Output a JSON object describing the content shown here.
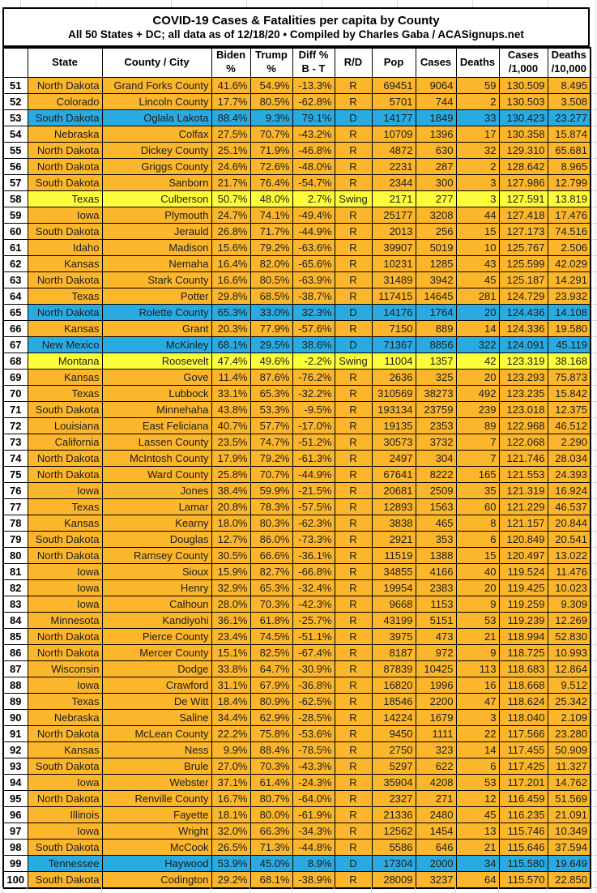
{
  "colors": {
    "republican_row": "#FBB62B",
    "democratic_row": "#29ABE2",
    "swing_row": "#FDFD3B"
  },
  "chart_data": {
    "type": "table",
    "title": "COVID-19 Cases & Fatalities per capita by County",
    "subtitle": "All 50 States + DC; all data as of 12/18/20  • Compiled by Charles Gaba / ACASignups.net",
    "row_color_legend": {
      "R": "orange",
      "D": "blue",
      "Swing": "yellow"
    },
    "columns": [
      "",
      "State",
      "County / City",
      "Biden\n%",
      "Trump\n%",
      "Diff %\nB - T",
      "R/D",
      "Pop",
      "Cases",
      "Deaths",
      "Cases\n/1,000",
      "Deaths\n/10,000"
    ],
    "rows": [
      [
        "51",
        "North Dakota",
        "Grand Forks County",
        "41.6%",
        "54.9%",
        "-13.3%",
        "R",
        "69451",
        "9064",
        "59",
        "130.509",
        "8.495"
      ],
      [
        "52",
        "Colorado",
        "Lincoln County",
        "17.7%",
        "80.5%",
        "-62.8%",
        "R",
        "5701",
        "744",
        "2",
        "130.503",
        "3.508"
      ],
      [
        "53",
        "South Dakota",
        "Oglala Lakota",
        "88.4%",
        "9.3%",
        "79.1%",
        "D",
        "14177",
        "1849",
        "33",
        "130.423",
        "23.277"
      ],
      [
        "54",
        "Nebraska",
        "Colfax",
        "27.5%",
        "70.7%",
        "-43.2%",
        "R",
        "10709",
        "1396",
        "17",
        "130.358",
        "15.874"
      ],
      [
        "55",
        "North Dakota",
        "Dickey County",
        "25.1%",
        "71.9%",
        "-46.8%",
        "R",
        "4872",
        "630",
        "32",
        "129.310",
        "65.681"
      ],
      [
        "56",
        "North Dakota",
        "Griggs County",
        "24.6%",
        "72.6%",
        "-48.0%",
        "R",
        "2231",
        "287",
        "2",
        "128.642",
        "8.965"
      ],
      [
        "57",
        "South Dakota",
        "Sanborn",
        "21.7%",
        "76.4%",
        "-54.7%",
        "R",
        "2344",
        "300",
        "3",
        "127.986",
        "12.799"
      ],
      [
        "58",
        "Texas",
        "Culberson",
        "50.7%",
        "48.0%",
        "2.7%",
        "Swing",
        "2171",
        "277",
        "3",
        "127.591",
        "13.819"
      ],
      [
        "59",
        "Iowa",
        "Plymouth",
        "24.7%",
        "74.1%",
        "-49.4%",
        "R",
        "25177",
        "3208",
        "44",
        "127.418",
        "17.476"
      ],
      [
        "60",
        "South Dakota",
        "Jerauld",
        "26.8%",
        "71.7%",
        "-44.9%",
        "R",
        "2013",
        "256",
        "15",
        "127.173",
        "74.516"
      ],
      [
        "61",
        "Idaho",
        "Madison",
        "15.6%",
        "79.2%",
        "-63.6%",
        "R",
        "39907",
        "5019",
        "10",
        "125.767",
        "2.506"
      ],
      [
        "62",
        "Kansas",
        "Nemaha",
        "16.4%",
        "82.0%",
        "-65.6%",
        "R",
        "10231",
        "1285",
        "43",
        "125.599",
        "42.029"
      ],
      [
        "63",
        "North Dakota",
        "Stark County",
        "16.6%",
        "80.5%",
        "-63.9%",
        "R",
        "31489",
        "3942",
        "45",
        "125.187",
        "14.291"
      ],
      [
        "64",
        "Texas",
        "Potter",
        "29.8%",
        "68.5%",
        "-38.7%",
        "R",
        "117415",
        "14645",
        "281",
        "124.729",
        "23.932"
      ],
      [
        "65",
        "North Dakota",
        "Rolette County",
        "65.3%",
        "33.0%",
        "32.3%",
        "D",
        "14176",
        "1764",
        "20",
        "124.436",
        "14.108"
      ],
      [
        "66",
        "Kansas",
        "Grant",
        "20.3%",
        "77.9%",
        "-57.6%",
        "R",
        "7150",
        "889",
        "14",
        "124.336",
        "19.580"
      ],
      [
        "67",
        "New Mexico",
        "McKinley",
        "68.1%",
        "29.5%",
        "38.6%",
        "D",
        "71367",
        "8856",
        "322",
        "124.091",
        "45.119"
      ],
      [
        "68",
        "Montana",
        "Roosevelt",
        "47.4%",
        "49.6%",
        "-2.2%",
        "Swing",
        "11004",
        "1357",
        "42",
        "123.319",
        "38.168"
      ],
      [
        "69",
        "Kansas",
        "Gove",
        "11.4%",
        "87.6%",
        "-76.2%",
        "R",
        "2636",
        "325",
        "20",
        "123.293",
        "75.873"
      ],
      [
        "70",
        "Texas",
        "Lubbock",
        "33.1%",
        "65.3%",
        "-32.2%",
        "R",
        "310569",
        "38273",
        "492",
        "123.235",
        "15.842"
      ],
      [
        "71",
        "South Dakota",
        "Minnehaha",
        "43.8%",
        "53.3%",
        "-9.5%",
        "R",
        "193134",
        "23759",
        "239",
        "123.018",
        "12.375"
      ],
      [
        "72",
        "Louisiana",
        "East Feliciana",
        "40.7%",
        "57.7%",
        "-17.0%",
        "R",
        "19135",
        "2353",
        "89",
        "122.968",
        "46.512"
      ],
      [
        "73",
        "California",
        "Lassen County",
        "23.5%",
        "74.7%",
        "-51.2%",
        "R",
        "30573",
        "3732",
        "7",
        "122.068",
        "2.290"
      ],
      [
        "74",
        "North Dakota",
        "McIntosh County",
        "17.9%",
        "79.2%",
        "-61.3%",
        "R",
        "2497",
        "304",
        "7",
        "121.746",
        "28.034"
      ],
      [
        "75",
        "North Dakota",
        "Ward County",
        "25.8%",
        "70.7%",
        "-44.9%",
        "R",
        "67641",
        "8222",
        "165",
        "121.553",
        "24.393"
      ],
      [
        "76",
        "Iowa",
        "Jones",
        "38.4%",
        "59.9%",
        "-21.5%",
        "R",
        "20681",
        "2509",
        "35",
        "121.319",
        "16.924"
      ],
      [
        "77",
        "Texas",
        "Lamar",
        "20.8%",
        "78.3%",
        "-57.5%",
        "R",
        "12893",
        "1563",
        "60",
        "121.229",
        "46.537"
      ],
      [
        "78",
        "Kansas",
        "Kearny",
        "18.0%",
        "80.3%",
        "-62.3%",
        "R",
        "3838",
        "465",
        "8",
        "121.157",
        "20.844"
      ],
      [
        "79",
        "South Dakota",
        "Douglas",
        "12.7%",
        "86.0%",
        "-73.3%",
        "R",
        "2921",
        "353",
        "6",
        "120.849",
        "20.541"
      ],
      [
        "80",
        "North Dakota",
        "Ramsey County",
        "30.5%",
        "66.6%",
        "-36.1%",
        "R",
        "11519",
        "1388",
        "15",
        "120.497",
        "13.022"
      ],
      [
        "81",
        "Iowa",
        "Sioux",
        "15.9%",
        "82.7%",
        "-66.8%",
        "R",
        "34855",
        "4166",
        "40",
        "119.524",
        "11.476"
      ],
      [
        "82",
        "Iowa",
        "Henry",
        "32.9%",
        "65.3%",
        "-32.4%",
        "R",
        "19954",
        "2383",
        "20",
        "119.425",
        "10.023"
      ],
      [
        "83",
        "Iowa",
        "Calhoun",
        "28.0%",
        "70.3%",
        "-42.3%",
        "R",
        "9668",
        "1153",
        "9",
        "119.259",
        "9.309"
      ],
      [
        "84",
        "Minnesota",
        "Kandiyohi",
        "36.1%",
        "61.8%",
        "-25.7%",
        "R",
        "43199",
        "5151",
        "53",
        "119.239",
        "12.269"
      ],
      [
        "85",
        "North Dakota",
        "Pierce County",
        "23.4%",
        "74.5%",
        "-51.1%",
        "R",
        "3975",
        "473",
        "21",
        "118.994",
        "52.830"
      ],
      [
        "86",
        "North Dakota",
        "Mercer County",
        "15.1%",
        "82.5%",
        "-67.4%",
        "R",
        "8187",
        "972",
        "9",
        "118.725",
        "10.993"
      ],
      [
        "87",
        "Wisconsin",
        "Dodge",
        "33.8%",
        "64.7%",
        "-30.9%",
        "R",
        "87839",
        "10425",
        "113",
        "118.683",
        "12.864"
      ],
      [
        "88",
        "Iowa",
        "Crawford",
        "31.1%",
        "67.9%",
        "-36.8%",
        "R",
        "16820",
        "1996",
        "16",
        "118.668",
        "9.512"
      ],
      [
        "89",
        "Texas",
        "De Witt",
        "18.4%",
        "80.9%",
        "-62.5%",
        "R",
        "18546",
        "2200",
        "47",
        "118.624",
        "25.342"
      ],
      [
        "90",
        "Nebraska",
        "Saline",
        "34.4%",
        "62.9%",
        "-28.5%",
        "R",
        "14224",
        "1679",
        "3",
        "118.040",
        "2.109"
      ],
      [
        "91",
        "North Dakota",
        "McLean County",
        "22.2%",
        "75.8%",
        "-53.6%",
        "R",
        "9450",
        "1111",
        "22",
        "117.566",
        "23.280"
      ],
      [
        "92",
        "Kansas",
        "Ness",
        "9.9%",
        "88.4%",
        "-78.5%",
        "R",
        "2750",
        "323",
        "14",
        "117.455",
        "50.909"
      ],
      [
        "93",
        "South Dakota",
        "Brule",
        "27.0%",
        "70.3%",
        "-43.3%",
        "R",
        "5297",
        "622",
        "6",
        "117.425",
        "11.327"
      ],
      [
        "94",
        "Iowa",
        "Webster",
        "37.1%",
        "61.4%",
        "-24.3%",
        "R",
        "35904",
        "4208",
        "53",
        "117.201",
        "14.762"
      ],
      [
        "95",
        "North Dakota",
        "Renville County",
        "16.7%",
        "80.7%",
        "-64.0%",
        "R",
        "2327",
        "271",
        "12",
        "116.459",
        "51.569"
      ],
      [
        "96",
        "Illinois",
        "Fayette",
        "18.1%",
        "80.0%",
        "-61.9%",
        "R",
        "21336",
        "2480",
        "45",
        "116.235",
        "21.091"
      ],
      [
        "97",
        "Iowa",
        "Wright",
        "32.0%",
        "66.3%",
        "-34.3%",
        "R",
        "12562",
        "1454",
        "13",
        "115.746",
        "10.349"
      ],
      [
        "98",
        "South Dakota",
        "McCook",
        "26.5%",
        "71.3%",
        "-44.8%",
        "R",
        "5586",
        "646",
        "21",
        "115.646",
        "37.594"
      ],
      [
        "99",
        "Tennessee",
        "Haywood",
        "53.9%",
        "45.0%",
        "8.9%",
        "D",
        "17304",
        "2000",
        "34",
        "115.580",
        "19.649"
      ],
      [
        "100",
        "South Dakota",
        "Codington",
        "29.2%",
        "68.1%",
        "-38.9%",
        "R",
        "28009",
        "3237",
        "64",
        "115.570",
        "22.850"
      ]
    ]
  }
}
